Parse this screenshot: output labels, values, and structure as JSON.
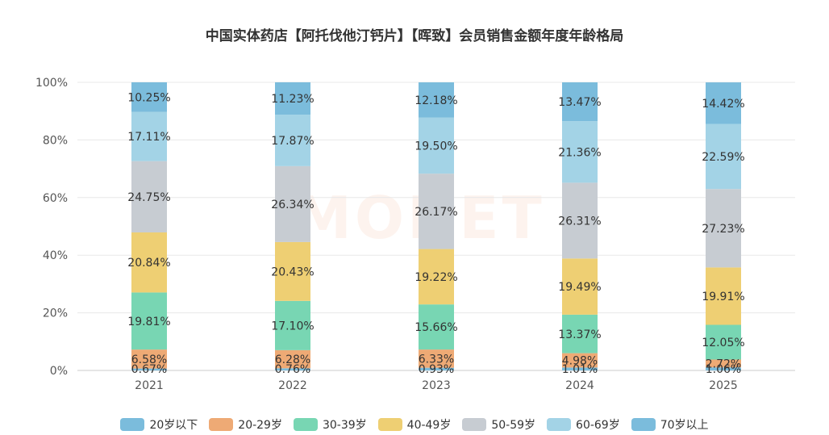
{
  "watermark_text": "MONET",
  "chart_data": {
    "type": "bar",
    "stacked": true,
    "title": "中国实体药店【阿托伐他汀钙片】【晖致】会员销售金额年度年龄格局",
    "xlabel": "",
    "ylabel": "",
    "ylim": [
      0,
      100
    ],
    "yticks": [
      "0%",
      "20%",
      "40%",
      "60%",
      "80%",
      "100%"
    ],
    "categories": [
      "2021",
      "2022",
      "2023",
      "2024",
      "2025"
    ],
    "grid": true,
    "legend_position": "bottom",
    "series": [
      {
        "name": "20岁以下",
        "color": "#7bbcdc",
        "values": [
          0.67,
          0.76,
          0.93,
          1.01,
          1.06
        ],
        "labels": [
          "0.67%",
          "0.76%",
          "0.93%",
          "1.01%",
          "1.06%"
        ]
      },
      {
        "name": "20-29岁",
        "color": "#eeaa75",
        "values": [
          6.58,
          6.28,
          6.33,
          4.98,
          2.72
        ],
        "labels": [
          "6.58%",
          "6.28%",
          "6.33%",
          "4.98%",
          "2.72%"
        ]
      },
      {
        "name": "30-39岁",
        "color": "#78d6b3",
        "values": [
          19.81,
          17.1,
          15.66,
          13.37,
          12.05
        ],
        "labels": [
          "19.81%",
          "17.10%",
          "15.66%",
          "13.37%",
          "12.05%"
        ]
      },
      {
        "name": "40-49岁",
        "color": "#eecf73",
        "values": [
          20.84,
          20.43,
          19.22,
          19.49,
          19.91
        ],
        "labels": [
          "20.84%",
          "20.43%",
          "19.22%",
          "19.49%",
          "19.91%"
        ]
      },
      {
        "name": "50-59岁",
        "color": "#c7ccd2",
        "values": [
          24.75,
          26.34,
          26.17,
          26.31,
          27.23
        ],
        "labels": [
          "24.75%",
          "26.34%",
          "26.17%",
          "26.31%",
          "27.23%"
        ]
      },
      {
        "name": "60-69岁",
        "color": "#a3d3e6",
        "values": [
          17.11,
          17.87,
          19.5,
          21.36,
          22.59
        ],
        "labels": [
          "17.11%",
          "17.87%",
          "19.50%",
          "21.36%",
          "22.59%"
        ]
      },
      {
        "name": "70岁以上",
        "color": "#7bbcdc",
        "values": [
          10.25,
          11.23,
          12.18,
          13.47,
          14.42
        ],
        "labels": [
          "10.25%",
          "11.23%",
          "12.18%",
          "13.47%",
          "14.42%"
        ]
      }
    ]
  }
}
